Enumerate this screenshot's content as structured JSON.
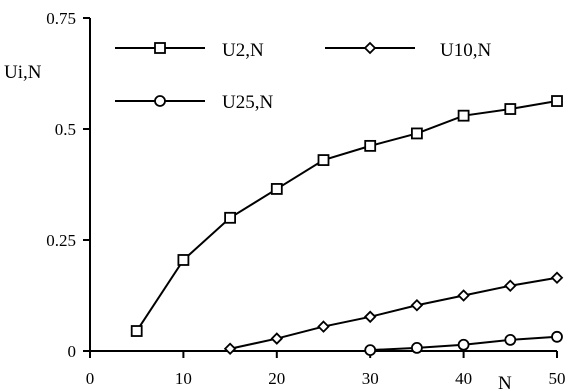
{
  "chart_data": {
    "type": "line",
    "ylabel": "Ui,N",
    "xlabel": "N",
    "xlim": [
      0,
      50
    ],
    "ylim": [
      0,
      0.75
    ],
    "x_ticks": [
      "0",
      "10",
      "20",
      "30",
      "40",
      "50"
    ],
    "y_ticks": [
      "0",
      "0.25",
      "0.5",
      "0.75"
    ],
    "legend_position": "top",
    "grid": false,
    "series": [
      {
        "name": "U2,N",
        "marker": "square",
        "points": [
          [
            5,
            0.045
          ],
          [
            10,
            0.205
          ],
          [
            15,
            0.3
          ],
          [
            20,
            0.365
          ],
          [
            25,
            0.43
          ],
          [
            30,
            0.462
          ],
          [
            35,
            0.49
          ],
          [
            40,
            0.53
          ],
          [
            45,
            0.545
          ],
          [
            50,
            0.563
          ]
        ]
      },
      {
        "name": "U10,N",
        "marker": "diamond",
        "points": [
          [
            15,
            0.005
          ],
          [
            20,
            0.028
          ],
          [
            25,
            0.055
          ],
          [
            30,
            0.077
          ],
          [
            35,
            0.103
          ],
          [
            40,
            0.125
          ],
          [
            45,
            0.147
          ],
          [
            50,
            0.165
          ]
        ]
      },
      {
        "name": "U25,N",
        "marker": "circle",
        "points": [
          [
            30,
            0.002
          ],
          [
            35,
            0.007
          ],
          [
            40,
            0.014
          ],
          [
            45,
            0.025
          ],
          [
            50,
            0.032
          ]
        ]
      }
    ]
  }
}
